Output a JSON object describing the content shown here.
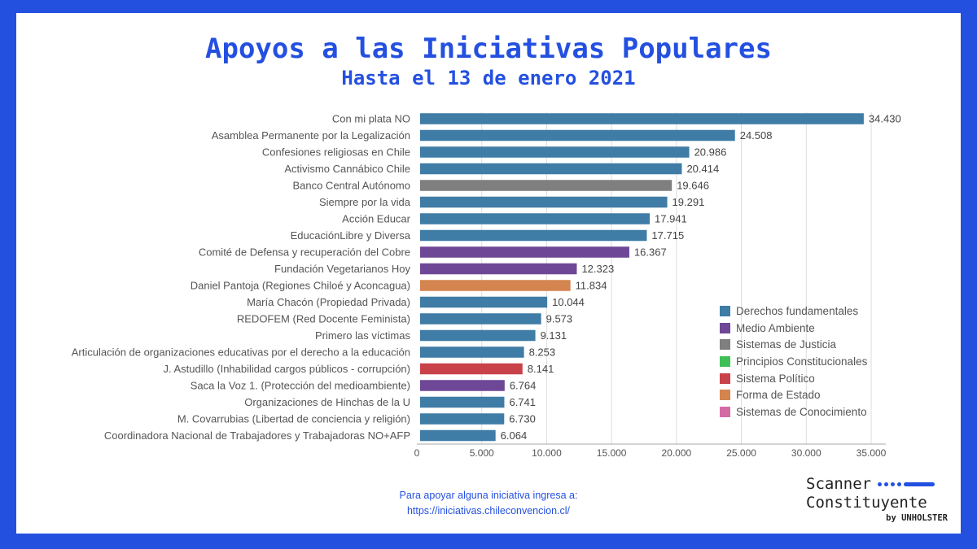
{
  "chart_data": {
    "type": "bar",
    "orientation": "horizontal",
    "title": "Apoyos a las Iniciativas Populares",
    "subtitle": "Hasta el 13 de enero 2021",
    "xlim": [
      0,
      35000
    ],
    "ticks": [
      0,
      5000,
      10000,
      15000,
      20000,
      25000,
      30000,
      35000
    ],
    "tick_labels": [
      "0",
      "5.000",
      "10.000",
      "15.000",
      "20.000",
      "25.000",
      "30.000",
      "35.000"
    ],
    "grid": true,
    "legend_position": "right",
    "categories": [
      "Con mi plata NO",
      "Asamblea Permanente por la Legalización",
      "Confesiones religiosas en Chile",
      "Activismo Cannábico Chile",
      "Banco Central Autónomo",
      "Siempre por la vida",
      "Acción Educar",
      "EducaciónLibre y Diversa",
      "Comité de Defensa y recuperación del Cobre",
      "Fundación Vegetarianos Hoy",
      "Daniel Pantoja (Regiones Chiloé y Aconcagua)",
      "María Chacón (Propiedad Privada)",
      "REDOFEM (Red Docente Feminista)",
      "Primero las víctimas",
      "Articulación de organizaciones educativas por el derecho a la educación",
      "J. Astudillo (Inhabilidad cargos públicos - corrupción)",
      "Saca la Voz 1. (Protección del medioambiente)",
      "Organizaciones de Hinchas de la U",
      "M. Covarrubias (Libertad de conciencia y religión)",
      "Coordinadora Nacional de Trabajadores y Trabajadoras NO+AFP"
    ],
    "values": [
      34430,
      24508,
      20986,
      20414,
      19646,
      19291,
      17941,
      17715,
      16367,
      12323,
      11834,
      10044,
      9573,
      9131,
      8253,
      8141,
      6764,
      6741,
      6730,
      6064
    ],
    "value_labels": [
      "34.430",
      "24.508",
      "20.986",
      "20.414",
      "19.646",
      "19.291",
      "17.941",
      "17.715",
      "16.367",
      "12.323",
      "11.834",
      "10.044",
      "9.573",
      "9.131",
      "8.253",
      "8.141",
      "6.764",
      "6.741",
      "6.730",
      "6.064"
    ],
    "bar_categories": [
      0,
      0,
      0,
      0,
      2,
      0,
      0,
      0,
      1,
      1,
      5,
      0,
      0,
      0,
      0,
      4,
      1,
      0,
      0,
      0
    ],
    "legend": [
      {
        "label": "Derechos fundamentales",
        "color": "#3f7ca6"
      },
      {
        "label": "Medio Ambiente",
        "color": "#6e4796"
      },
      {
        "label": "Sistemas de Justicia",
        "color": "#7f7f7f"
      },
      {
        "label": "Principios Constitucionales",
        "color": "#3fbf57"
      },
      {
        "label": "Sistema Político",
        "color": "#c9424a"
      },
      {
        "label": "Forma de Estado",
        "color": "#d4844f"
      },
      {
        "label": "Sistemas de Conocimiento",
        "color": "#d46ba5"
      }
    ]
  },
  "footer": {
    "line1": "Para apoyar alguna iniciativa ingresa a:",
    "line2": "https://iniciativas.chileconvencion.cl/"
  },
  "logo": {
    "line1": "Scanner",
    "line2": "Constituyente",
    "line3": "by UNHOLSTER"
  }
}
